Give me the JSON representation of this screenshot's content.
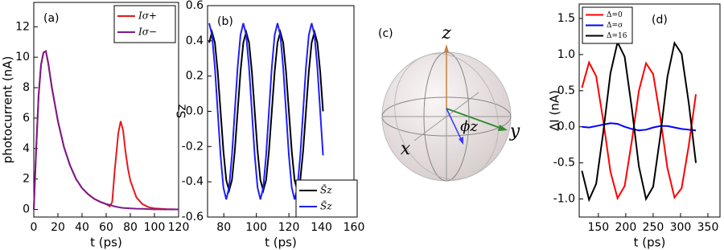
{
  "chart_data": [
    {
      "type": "line",
      "panel_label": "(a)",
      "x_label": "t (ps)",
      "y_label": "photocurrent (nA)",
      "legend": "upper right",
      "x": [
        0,
        2,
        4,
        6,
        8,
        10,
        12,
        15,
        20,
        25,
        30,
        35,
        40,
        45,
        50,
        55,
        60,
        63,
        65,
        67,
        70,
        72,
        74,
        76,
        78,
        80,
        85,
        90,
        95,
        100,
        110,
        120
      ],
      "series": [
        {
          "name": "Iσ+",
          "color": "#e41a1c",
          "values": [
            0,
            4,
            7.5,
            9.5,
            10.3,
            10.4,
            9.6,
            8,
            5.8,
            4.1,
            2.9,
            2.0,
            1.4,
            1.0,
            0.7,
            0.5,
            0.35,
            0.2,
            0.5,
            2.5,
            5.0,
            5.8,
            5.2,
            3.8,
            2.7,
            1.9,
            0.8,
            0.35,
            0.15,
            0.07,
            0.02,
            0
          ]
        },
        {
          "name": "Iσ−",
          "color": "#7b1a8c",
          "values": [
            0,
            4,
            7.5,
            9.5,
            10.3,
            10.4,
            9.6,
            8,
            5.8,
            4.1,
            2.9,
            2.0,
            1.4,
            1.0,
            0.7,
            0.5,
            0.35,
            0.3,
            0.25,
            0.2,
            0.15,
            0.12,
            0.1,
            0.09,
            0.08,
            0.07,
            0.05,
            0.04,
            0.02,
            0.01,
            0,
            0
          ]
        }
      ],
      "xlim": [
        0,
        120
      ],
      "xticks": [
        0,
        20,
        40,
        60,
        80,
        100,
        120
      ],
      "ylim": [
        -0.5,
        13.6
      ],
      "yticks": [
        0,
        2,
        4,
        6,
        8,
        10,
        12
      ]
    },
    {
      "type": "line",
      "panel_label": "(b)",
      "x_label": "t (ps)",
      "y_label": "Sz",
      "legend": "lower right",
      "x": [
        71,
        72.75,
        74.5,
        76.25,
        78,
        79.75,
        81.5,
        83.25,
        85,
        86.75,
        88.5,
        90.25,
        92,
        93.75,
        95.5,
        97.25,
        99,
        100.75,
        102.5,
        104.25,
        106,
        107.75,
        109.5,
        111.25,
        113,
        114.75,
        116.5,
        118.25,
        120,
        121.75,
        123.5,
        125.25,
        127,
        128.75,
        130.5,
        132.25,
        134,
        135.75,
        137.5,
        139.25,
        141
      ],
      "series": [
        {
          "name": "S̄z",
          "color": "#000000",
          "values": [
            0.39,
            0.45,
            0.39,
            0.225,
            0,
            -0.225,
            -0.39,
            -0.45,
            -0.39,
            -0.225,
            0,
            0.225,
            0.39,
            0.45,
            0.39,
            0.225,
            0,
            -0.225,
            -0.39,
            -0.45,
            -0.39,
            -0.225,
            0,
            0.225,
            0.39,
            0.45,
            0.39,
            0.225,
            0,
            -0.225,
            -0.39,
            -0.45,
            -0.39,
            -0.225,
            0,
            0.225,
            0.39,
            0.45,
            0.39,
            0.225,
            0
          ]
        },
        {
          "name": "S̃z",
          "color": "#1f1fff",
          "values": [
            0.5,
            0.433,
            0.25,
            0,
            -0.25,
            -0.433,
            -0.5,
            -0.433,
            -0.25,
            0,
            0.25,
            0.433,
            0.5,
            0.433,
            0.25,
            0,
            -0.25,
            -0.433,
            -0.5,
            -0.433,
            -0.25,
            0,
            0.25,
            0.433,
            0.5,
            0.433,
            0.25,
            0,
            -0.25,
            -0.433,
            -0.5,
            -0.433,
            -0.25,
            0,
            0.25,
            0.433,
            0.5,
            0.433,
            0.25,
            0,
            -0.25
          ]
        }
      ],
      "xlim": [
        70,
        160
      ],
      "xticks": [
        80,
        100,
        120,
        140,
        160
      ],
      "ylim": [
        -0.6,
        0.6
      ],
      "yticks": [
        0.6,
        0.4,
        0.2,
        {
          "value": 0,
          "label": "0.0"
        },
        -0.2,
        -0.4,
        -0.6
      ]
    },
    {
      "type": "bloch",
      "panel_label": "(c)",
      "axis_labels": [
        "z",
        "x",
        "y"
      ],
      "angle_label": "ϕz"
    },
    {
      "type": "line",
      "panel_label": "(d)",
      "x_label": "t (ps)",
      "y_label": "ΔI (nA)",
      "legend": "upper left",
      "x": [
        120,
        133,
        146,
        159,
        172,
        185,
        198,
        211,
        224,
        237,
        250,
        263,
        276,
        289,
        302,
        315,
        328
      ],
      "series": [
        {
          "name": "Δ=0",
          "color": "#ff0000",
          "values": [
            0.54,
            0.89,
            0.7,
            0.08,
            -0.62,
            -0.99,
            -0.82,
            -0.2,
            0.5,
            0.88,
            0.73,
            0.13,
            -0.57,
            -0.98,
            -0.85,
            -0.26,
            0.45
          ]
        },
        {
          "name": "Δ=σ",
          "color": "#0000ff",
          "values": [
            0,
            -0.01,
            0.01,
            0.03,
            0.05,
            0.04,
            0.0,
            -0.03,
            -0.05,
            -0.04,
            -0.01,
            0.01,
            0.01,
            -0.01,
            -0.03,
            -0.04,
            -0.05
          ]
        },
        {
          "name": "Δ=16",
          "color": "#000000",
          "values": [
            -0.61,
            -1.01,
            -0.79,
            -0.07,
            0.74,
            1.17,
            0.97,
            0.26,
            -0.55,
            -1.0,
            -0.83,
            -0.13,
            0.69,
            1.16,
            1.01,
            0.33,
            -0.5
          ]
        }
      ],
      "xlim": [
        115,
        372
      ],
      "xticks": [
        150,
        200,
        250,
        300,
        350
      ],
      "ylim": [
        -1.25,
        1.7
      ],
      "yticks": [
        1.5,
        {
          "value": 1,
          "label": "1.0"
        },
        0.5,
        {
          "value": 0,
          "label": "0.0"
        },
        -0.5,
        {
          "value": -1,
          "label": "-1.0"
        }
      ]
    }
  ]
}
